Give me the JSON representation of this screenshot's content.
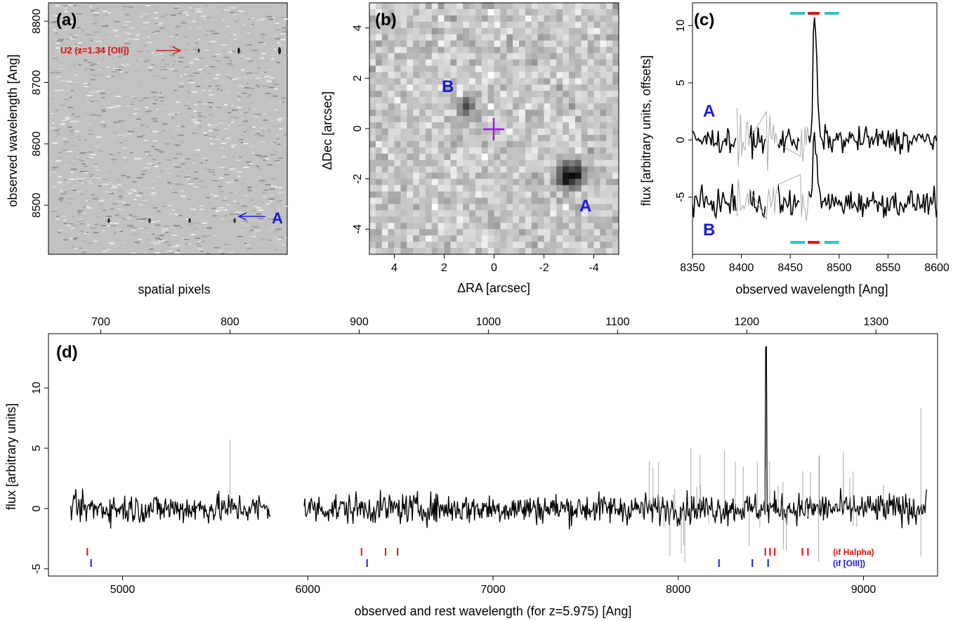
{
  "panels": {
    "a": {
      "tag": "(a)",
      "ylabel": "observed wavelength [Ang]",
      "xlabel": "spatial pixels",
      "ylim": [
        8420,
        8830
      ],
      "yticks": [
        "8500",
        "8600",
        "8700",
        "8800"
      ],
      "annotation_u2": "U2 (z=1.34 [OII])",
      "annotation_a": "A",
      "colors": {
        "u2": "#e01010",
        "a": "#1a1adc"
      }
    },
    "b": {
      "tag": "(b)",
      "ylabel": "ΔDec [arcsec]",
      "xlabel": "ΔRA [arcsec]",
      "xlim": [
        5,
        -5
      ],
      "ylim": [
        -5,
        5
      ],
      "xticks": [
        "4",
        "2",
        "0",
        "-2",
        "-4"
      ],
      "yticks": [
        "4",
        "2",
        "0",
        "-2",
        "-4"
      ],
      "label_a": "A",
      "label_b": "B",
      "colors": {
        "cross": "#9b1fd1",
        "labels": "#1a1adc"
      }
    },
    "c": {
      "tag": "(c)",
      "ylabel": "flux [arbitrary units, offsets]",
      "xlabel": "observed wavelength [Ang]",
      "label_a": "A",
      "label_b": "B",
      "colors": {
        "continuum_bar": "#2ec4c4",
        "line_bar": "#e01010"
      }
    },
    "d": {
      "tag": "(d)",
      "ylabel": "flux [arbitrary units]",
      "xlabel": "observed and rest wavelength (for z=5.975) [Ang]",
      "note_halpha": "(if Halpha)",
      "note_oiii": "(if [OIII])",
      "colors": {
        "halpha": "#e01010",
        "oiii": "#1a1adc"
      }
    }
  },
  "chart_data": [
    {
      "panel": "a",
      "type": "heatmap",
      "title": "",
      "xlabel": "spatial pixels",
      "ylabel": "observed wavelength [Ang]",
      "ylim": [
        8420,
        8830
      ],
      "features": [
        {
          "label": "U2 (z=1.34 [OII])",
          "wavelength": 8752
        },
        {
          "label": "A",
          "wavelength": 8475
        }
      ]
    },
    {
      "panel": "b",
      "type": "heatmap",
      "xlabel": "ΔRA [arcsec]",
      "ylabel": "ΔDec [arcsec]",
      "xlim": [
        5,
        -5
      ],
      "ylim": [
        -5,
        5
      ],
      "sources": [
        {
          "label": "A",
          "dRA": -3.1,
          "dDec": -1.9
        },
        {
          "label": "B",
          "dRA": 1.1,
          "dDec": 0.9
        }
      ],
      "center_marker": {
        "dRA": 0,
        "dDec": 0
      }
    },
    {
      "panel": "c",
      "type": "line",
      "xlabel": "observed wavelength [Ang]",
      "ylabel": "flux [arbitrary units, offsets]",
      "xlim": [
        8350,
        8600
      ],
      "ylim": [
        -10,
        12
      ],
      "xticks": [
        8350,
        8400,
        8450,
        8500,
        8550,
        8600
      ],
      "yticks": [
        -5,
        0,
        5,
        10
      ],
      "series": [
        {
          "name": "A",
          "offset": 0,
          "line_center": 8475,
          "peak": 10.6
        },
        {
          "name": "B",
          "offset": -5.5,
          "line_center": 8475,
          "peak": 0.5
        }
      ],
      "windows": {
        "continuum": [
          [
            8450,
            8465
          ],
          [
            8485,
            8500
          ]
        ],
        "line": [
          8468,
          8480
        ]
      }
    },
    {
      "panel": "d",
      "type": "line",
      "xlabel": "observed and rest wavelength (for z=5.975) [Ang]",
      "ylabel": "flux [arbitrary units]",
      "xlim": [
        4600,
        9400
      ],
      "ylim": [
        -5.6,
        14.5
      ],
      "xticks": [
        5000,
        6000,
        7000,
        8000,
        9000
      ],
      "yticks": [
        -5,
        0,
        5,
        10
      ],
      "top_axis_rest_ticks": [
        700,
        800,
        900,
        1000,
        1100,
        1200,
        1300
      ],
      "gaps": [
        [
          5800,
          5980
        ]
      ],
      "emission_line": {
        "wavelength": 8475,
        "peak": 13.4
      },
      "halpha_markers": [
        4810,
        6290,
        6420,
        6485,
        8470,
        8495,
        8520,
        8670,
        8700
      ],
      "oiii_markers": [
        4830,
        6320,
        8220,
        8400,
        8485
      ]
    }
  ]
}
